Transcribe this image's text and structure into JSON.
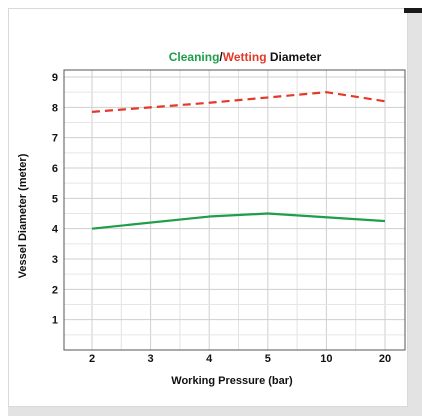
{
  "chart_data": {
    "type": "line",
    "title_parts": [
      {
        "text": "Cleaning",
        "color": "#1e9e4a"
      },
      {
        "text": "/",
        "color": "#111111"
      },
      {
        "text": "Wetting",
        "color": "#e23a2a"
      },
      {
        "text": " Diameter",
        "color": "#111111"
      }
    ],
    "xlabel": "Working Pressure (bar)",
    "ylabel": "Vessel Diameter (meter)",
    "categories": [
      "2",
      "3",
      "4",
      "5",
      "10",
      "20"
    ],
    "ylim": [
      0,
      9
    ],
    "yticks": [
      "1",
      "2",
      "3",
      "4",
      "5",
      "6",
      "7",
      "8",
      "9"
    ],
    "grid": true,
    "series": [
      {
        "key": "cleaning",
        "color": "#1e9e4a",
        "style": "solid",
        "points": [
          [
            "2",
            4.0
          ],
          [
            "4",
            4.4
          ],
          [
            "5",
            4.5
          ],
          [
            "20",
            4.25
          ]
        ]
      },
      {
        "key": "wetting",
        "color": "#e23a2a",
        "style": "dashed",
        "points": [
          [
            "2",
            7.85
          ],
          [
            "4",
            8.15
          ],
          [
            "10",
            8.5
          ],
          [
            "20",
            8.2
          ]
        ]
      }
    ]
  }
}
